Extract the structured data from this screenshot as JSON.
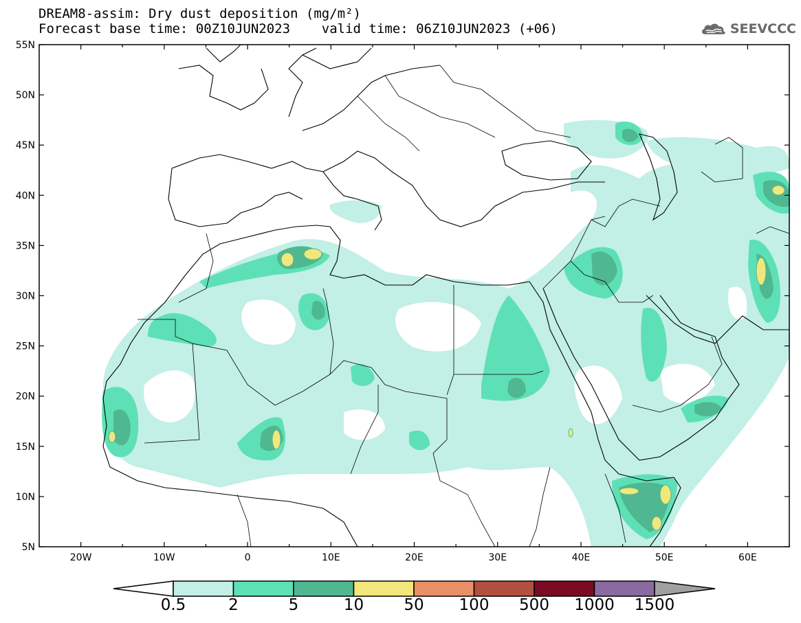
{
  "header": {
    "title_line1": "DREAM8-assim: Dry dust deposition (mg/m²)",
    "title_line2": "Forecast base time: 00Z10JUN2023    valid time: 06Z10JUN2023 (+06)",
    "logo_text": "SEEVCCC"
  },
  "map": {
    "lon_range": [
      -25,
      65
    ],
    "lat_range": [
      5,
      55
    ],
    "lat_labels": [
      "55N",
      "50N",
      "45N",
      "40N",
      "35N",
      "30N",
      "25N",
      "20N",
      "15N",
      "10N",
      "5N"
    ],
    "lat_values": [
      55,
      50,
      45,
      40,
      35,
      30,
      25,
      20,
      15,
      10,
      5
    ],
    "lon_labels": [
      "20W",
      "10W",
      "0",
      "10E",
      "20E",
      "30E",
      "40E",
      "50E",
      "60E"
    ],
    "lon_values": [
      -20,
      -10,
      0,
      10,
      20,
      30,
      40,
      50,
      60
    ],
    "background_color": "#ffffff",
    "coastline_color": "#000000"
  },
  "colorbar": {
    "labels": [
      "0.5",
      "2",
      "5",
      "10",
      "50",
      "100",
      "500",
      "1000",
      "1500"
    ],
    "colors": [
      "#c2efe6",
      "#5ee0b6",
      "#4fb890",
      "#f2e77a",
      "#e88f68",
      "#b34f3e",
      "#7a0b22",
      "#8a6aa0"
    ],
    "under_color": "#ffffff",
    "over_color": "#a0a0a0"
  }
}
